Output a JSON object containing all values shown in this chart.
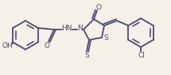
{
  "background_color": "#f5f0e8",
  "line_color": "#4a4a72",
  "line_width": 1.3,
  "font_size": 6.5,
  "figsize": [
    2.15,
    0.94
  ],
  "dpi": 100,
  "xlim": [
    0,
    215
  ],
  "ylim": [
    0,
    94
  ]
}
